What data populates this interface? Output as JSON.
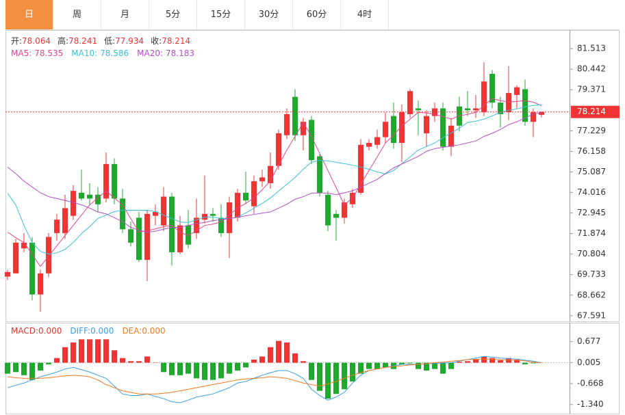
{
  "tabs": [
    "日",
    "周",
    "月",
    "5分",
    "15分",
    "30分",
    "60分",
    "4时"
  ],
  "active_tab": 0,
  "chart_data": [
    {
      "type": "candlestick",
      "ohlc_labels": [
        "开:",
        "高:",
        "低:",
        "收:"
      ],
      "up_color": "#f03333",
      "down_color": "#1fa82e",
      "ylim": [
        67.3,
        82.48
      ],
      "yticks": [
        81.513,
        80.442,
        79.371,
        77.229,
        76.158,
        75.087,
        74.016,
        72.945,
        71.874,
        70.804,
        69.733,
        68.662,
        67.591
      ],
      "open": [
        69.63,
        69.8,
        71.1,
        71.4,
        68.7,
        69.8,
        71.9,
        71.9,
        72.8,
        74.0,
        73.9,
        73.9,
        73.7,
        75.5,
        73.7,
        72.1,
        72.7,
        70.5,
        72.8,
        72.3,
        73.8,
        70.9,
        72.3,
        71.9,
        72.6,
        72.9,
        72.7,
        71.9,
        72.7,
        74.0,
        73.3,
        74.6,
        74.5,
        75.4,
        77.0,
        79.0,
        77.0,
        77.8,
        75.9,
        73.9,
        72.9,
        72.7,
        73.4,
        74.0,
        76.4,
        76.5,
        76.9,
        78.0,
        76.6,
        78.1,
        78.4,
        77.1,
        78.0,
        78.4,
        76.4,
        78.5,
        78.4,
        78.3,
        78.2,
        80.2,
        78.7,
        78.2,
        79.1,
        79.4,
        77.7,
        78.064
      ],
      "high": [
        69.99,
        71.6,
        71.9,
        71.7,
        70.0,
        71.9,
        72.9,
        73.9,
        74.4,
        75.2,
        74.5,
        74.3,
        76.1,
        75.8,
        74.2,
        72.5,
        73.0,
        73.1,
        73.4,
        74.3,
        74.0,
        72.8,
        73.1,
        73.7,
        74.9,
        73.2,
        73.4,
        73.8,
        74.2,
        75.1,
        74.9,
        75.2,
        76.1,
        77.3,
        78.4,
        79.4,
        77.9,
        78.0,
        76.0,
        74.1,
        73.1,
        73.7,
        74.2,
        76.8,
        76.8,
        77.3,
        78.2,
        78.7,
        78.6,
        79.4,
        78.8,
        78.3,
        78.7,
        78.7,
        77.9,
        79.0,
        79.3,
        79.1,
        80.8,
        80.4,
        79.0,
        80.6,
        79.6,
        79.9,
        78.4,
        78.241
      ],
      "low": [
        69.45,
        69.8,
        70.9,
        68.4,
        67.8,
        69.6,
        71.5,
        71.6,
        72.6,
        73.6,
        73.4,
        73.0,
        73.5,
        73.4,
        71.9,
        71.2,
        70.4,
        69.4,
        72.3,
        72.0,
        70.2,
        70.8,
        71.1,
        71.6,
        72.4,
        72.5,
        71.7,
        70.6,
        72.5,
        73.4,
        72.9,
        74.3,
        74.2,
        75.2,
        76.8,
        76.7,
        76.2,
        75.5,
        73.8,
        72.0,
        71.5,
        72.4,
        73.2,
        73.9,
        76.2,
        76.3,
        76.6,
        76.3,
        75.6,
        77.9,
        77.0,
        76.4,
        77.7,
        76.2,
        75.9,
        77.2,
        78.0,
        77.9,
        78.0,
        78.4,
        77.4,
        77.8,
        78.4,
        77.5,
        76.9,
        77.934
      ],
      "close": [
        69.87,
        71.4,
        71.4,
        68.7,
        69.8,
        71.7,
        72.6,
        73.2,
        74.1,
        73.7,
        73.7,
        73.4,
        75.5,
        73.7,
        72.1,
        71.4,
        70.5,
        72.9,
        73.0,
        73.8,
        70.9,
        72.3,
        71.3,
        72.7,
        72.9,
        72.8,
        71.9,
        73.5,
        74.0,
        73.6,
        74.6,
        74.8,
        75.4,
        77.1,
        78.1,
        77.0,
        77.7,
        75.7,
        74.0,
        72.3,
        72.7,
        73.5,
        74.0,
        76.5,
        76.6,
        76.9,
        77.7,
        76.6,
        78.2,
        79.3,
        78.3,
        78.0,
        78.4,
        76.4,
        77.5,
        77.5,
        78.3,
        78.4,
        79.8,
        78.7,
        78.1,
        79.2,
        79.5,
        77.7,
        78.2,
        78.214
      ],
      "series": [
        {
          "name": "MA5:",
          "color": "#e6458a",
          "values": [
            71.95,
            71.66,
            71.41,
            70.8,
            70.16,
            70.7,
            71.23,
            71.77,
            72.3,
            72.84,
            73.37,
            73.73,
            74.09,
            73.73,
            73.37,
            72.66,
            71.95,
            72.02,
            72.12,
            72.23,
            72.3,
            71.95,
            71.77,
            72.02,
            72.3,
            72.37,
            72.48,
            72.84,
            73.2,
            73.45,
            73.73,
            74.16,
            74.62,
            75.44,
            76.23,
            76.94,
            77.66,
            76.94,
            76.05,
            75.16,
            74.27,
            73.37,
            73.73,
            74.44,
            75.16,
            75.87,
            76.59,
            77.02,
            77.48,
            77.84,
            78.19,
            78.16,
            78.09,
            77.98,
            77.84,
            78.01,
            78.09,
            78.19,
            78.55,
            78.91,
            78.8,
            78.73,
            78.76,
            78.8,
            78.73,
            78.535
          ]
        },
        {
          "name": "MA10:",
          "color": "#3cc0d8",
          "values": [
            73.98,
            73.37,
            72.3,
            71.41,
            70.95,
            70.8,
            70.87,
            71.05,
            71.41,
            71.87,
            72.23,
            72.66,
            72.84,
            73.02,
            73.09,
            73.09,
            73.09,
            73.09,
            73.02,
            72.84,
            72.66,
            72.48,
            72.45,
            72.59,
            72.73,
            72.73,
            72.66,
            72.66,
            72.73,
            72.95,
            73.2,
            73.45,
            73.73,
            74.09,
            74.44,
            74.8,
            75.23,
            75.59,
            75.69,
            75.66,
            75.59,
            75.52,
            75.44,
            75.34,
            75.23,
            75.09,
            74.98,
            75.16,
            75.52,
            75.87,
            76.23,
            76.41,
            76.59,
            76.87,
            77.12,
            77.37,
            77.66,
            77.73,
            77.84,
            78.01,
            78.19,
            78.3,
            78.37,
            78.48,
            78.55,
            78.586
          ]
        },
        {
          "name": "MA20:",
          "color": "#b24fc6",
          "values": [
            75.34,
            75.0,
            74.6,
            74.3,
            74.0,
            73.8,
            73.7,
            73.6,
            73.5,
            73.37,
            73.2,
            73.0,
            72.9,
            72.7,
            72.5,
            72.2,
            72.05,
            71.94,
            72.0,
            72.1,
            72.2,
            72.2,
            72.3,
            72.4,
            72.45,
            72.55,
            72.6,
            72.66,
            72.73,
            72.8,
            72.87,
            72.94,
            73.0,
            73.2,
            73.4,
            73.66,
            73.8,
            73.98,
            74.0,
            73.98,
            73.9,
            74.0,
            74.1,
            74.3,
            74.5,
            74.7,
            75.0,
            75.3,
            75.5,
            75.7,
            75.9,
            76.16,
            76.3,
            76.37,
            76.44,
            76.5,
            76.6,
            76.7,
            76.94,
            77.1,
            77.3,
            77.55,
            77.7,
            77.9,
            78.1,
            78.183
          ]
        }
      ]
    },
    {
      "type": "macd",
      "ylim": [
        -1.631,
        1.283
      ],
      "yticks": [
        0.677,
        0.005,
        -0.668,
        {
          "value": -1.34,
          "label": "-1.340"
        }
      ],
      "up_color": "#f03333",
      "down_color": "#1fa82e",
      "series": [
        {
          "name": "MACD:",
          "readout": "0.000",
          "color": "#e03030",
          "kind": "bar",
          "values": [
            -0.35,
            -0.3,
            -0.4,
            -0.55,
            -0.25,
            -0.05,
            0.15,
            0.5,
            0.65,
            0.75,
            0.75,
            0.75,
            0.75,
            0.4,
            0.15,
            0.05,
            0.05,
            0.2,
            0.01,
            -0.3,
            -0.4,
            -0.4,
            -0.35,
            -0.5,
            -0.55,
            -0.55,
            -0.5,
            -0.35,
            -0.25,
            -0.15,
            0.1,
            0.2,
            0.5,
            0.7,
            0.65,
            0.3,
            0.05,
            -0.55,
            -0.9,
            -1.15,
            -1.0,
            -0.85,
            -0.6,
            -0.35,
            -0.2,
            -0.2,
            -0.15,
            -0.2,
            -0.05,
            -0.02,
            -0.2,
            -0.25,
            -0.2,
            -0.35,
            -0.2,
            0.03,
            0.05,
            0.1,
            0.2,
            0.15,
            0.08,
            0.15,
            0.1,
            -0.05,
            -0.02,
            0.0
          ]
        },
        {
          "name": "DIFF:",
          "readout": "0.000",
          "color": "#3a9ee6",
          "kind": "line",
          "values": [
            -0.8,
            -0.72,
            -0.65,
            -0.55,
            -0.45,
            -0.38,
            -0.3,
            -0.2,
            -0.15,
            -0.22,
            -0.3,
            -0.4,
            -0.5,
            -0.75,
            -1.0,
            -1.05,
            -1.05,
            -1.0,
            -1.08,
            -1.15,
            -1.25,
            -1.28,
            -1.2,
            -1.1,
            -1.05,
            -1.0,
            -0.9,
            -0.8,
            -0.65,
            -0.6,
            -0.5,
            -0.4,
            -0.32,
            -0.25,
            -0.25,
            -0.35,
            -0.5,
            -0.85,
            -1.05,
            -1.2,
            -1.1,
            -0.95,
            -0.65,
            -0.4,
            -0.25,
            -0.2,
            -0.15,
            -0.1,
            -0.05,
            -0.05,
            -0.05,
            -0.03,
            -0.02,
            -0.01,
            0.0,
            0.05,
            0.1,
            0.15,
            0.2,
            0.18,
            0.15,
            0.13,
            0.12,
            0.08,
            0.05,
            0.0
          ]
        },
        {
          "name": "DEA:",
          "readout": "0.000",
          "color": "#f07a22",
          "kind": "line",
          "values": [
            -0.45,
            -0.48,
            -0.5,
            -0.5,
            -0.5,
            -0.48,
            -0.45,
            -0.42,
            -0.4,
            -0.42,
            -0.45,
            -0.55,
            -0.7,
            -0.8,
            -0.9,
            -0.95,
            -1.0,
            -1.0,
            -1.0,
            -0.98,
            -0.95,
            -0.9,
            -0.85,
            -0.8,
            -0.75,
            -0.7,
            -0.65,
            -0.6,
            -0.55,
            -0.52,
            -0.5,
            -0.48,
            -0.45,
            -0.47,
            -0.5,
            -0.57,
            -0.65,
            -0.7,
            -0.75,
            -0.68,
            -0.6,
            -0.5,
            -0.4,
            -0.32,
            -0.25,
            -0.2,
            -0.15,
            -0.12,
            -0.1,
            -0.07,
            -0.05,
            -0.03,
            0.0,
            0.02,
            0.05,
            0.07,
            0.1,
            0.11,
            0.12,
            0.11,
            0.1,
            0.09,
            0.08,
            0.06,
            0.02,
            0.0
          ]
        }
      ]
    }
  ]
}
